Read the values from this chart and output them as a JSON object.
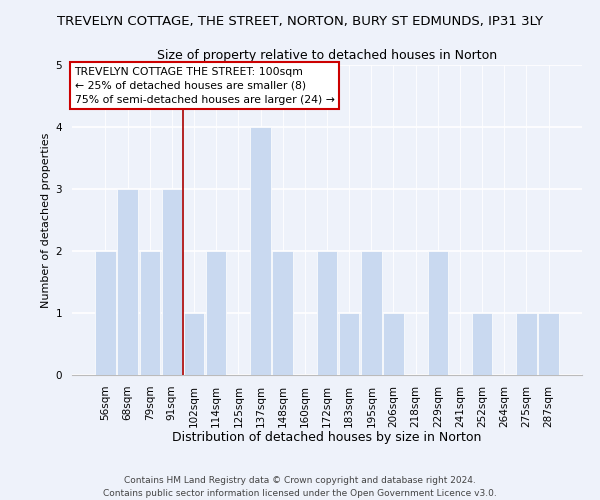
{
  "title": "TREVELYN COTTAGE, THE STREET, NORTON, BURY ST EDMUNDS, IP31 3LY",
  "subtitle": "Size of property relative to detached houses in Norton",
  "xlabel": "Distribution of detached houses by size in Norton",
  "ylabel": "Number of detached properties",
  "categories": [
    "56sqm",
    "68sqm",
    "79sqm",
    "91sqm",
    "102sqm",
    "114sqm",
    "125sqm",
    "137sqm",
    "148sqm",
    "160sqm",
    "172sqm",
    "183sqm",
    "195sqm",
    "206sqm",
    "218sqm",
    "229sqm",
    "241sqm",
    "252sqm",
    "264sqm",
    "275sqm",
    "287sqm"
  ],
  "values": [
    2,
    3,
    2,
    3,
    1,
    2,
    0,
    4,
    2,
    0,
    2,
    1,
    2,
    1,
    0,
    2,
    0,
    1,
    0,
    1,
    1
  ],
  "bar_color": "#c9d9f0",
  "bar_edge_color": "#ffffff",
  "background_color": "#eef2fa",
  "vline_x_index": 4,
  "vline_color": "#aa0000",
  "annotation_line1": "TREVELYN COTTAGE THE STREET: 100sqm",
  "annotation_line2": "← 25% of detached houses are smaller (8)",
  "annotation_line3": "75% of semi-detached houses are larger (24) →",
  "annotation_box_color": "#ffffff",
  "annotation_box_edge": "#cc0000",
  "ylim": [
    0,
    5
  ],
  "yticks": [
    0,
    1,
    2,
    3,
    4,
    5
  ],
  "footer1": "Contains HM Land Registry data © Crown copyright and database right 2024.",
  "footer2": "Contains public sector information licensed under the Open Government Licence v3.0.",
  "title_fontsize": 9.5,
  "subtitle_fontsize": 9,
  "xlabel_fontsize": 9,
  "ylabel_fontsize": 8,
  "tick_fontsize": 7.5,
  "footer_fontsize": 6.5,
  "annotation_fontsize": 7.8
}
